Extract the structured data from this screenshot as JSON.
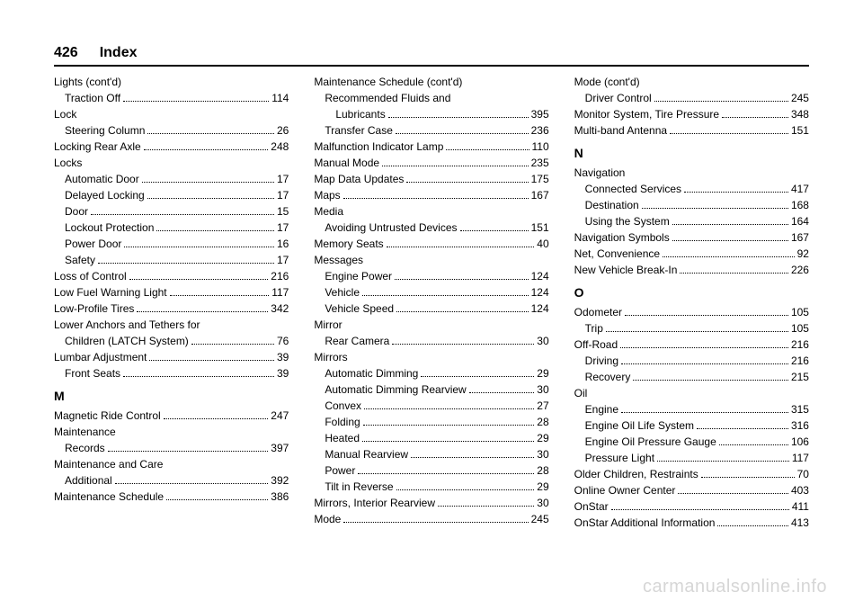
{
  "header": {
    "page_number": "426",
    "section": "Index"
  },
  "watermark": "carmanualsonline.info",
  "col1": [
    {
      "type": "group",
      "label": "Lights (cont'd)"
    },
    {
      "type": "sub",
      "label": "Traction Off",
      "page": "114"
    },
    {
      "type": "group",
      "label": "Lock"
    },
    {
      "type": "sub",
      "label": "Steering Column",
      "page": "26"
    },
    {
      "type": "entry",
      "label": "Locking Rear Axle",
      "page": "248"
    },
    {
      "type": "group",
      "label": "Locks"
    },
    {
      "type": "sub",
      "label": "Automatic Door",
      "page": "17"
    },
    {
      "type": "sub",
      "label": "Delayed Locking",
      "page": "17"
    },
    {
      "type": "sub",
      "label": "Door",
      "page": "15"
    },
    {
      "type": "sub",
      "label": "Lockout Protection",
      "page": "17"
    },
    {
      "type": "sub",
      "label": "Power Door",
      "page": "16"
    },
    {
      "type": "sub",
      "label": "Safety",
      "page": "17"
    },
    {
      "type": "entry",
      "label": "Loss of Control",
      "page": "216"
    },
    {
      "type": "entry",
      "label": "Low Fuel Warning Light",
      "page": "117"
    },
    {
      "type": "entry",
      "label": "Low-Profile Tires",
      "page": "342"
    },
    {
      "type": "group",
      "label": "Lower Anchors and Tethers for"
    },
    {
      "type": "sub",
      "label": "Children (LATCH System)",
      "page": "76"
    },
    {
      "type": "entry",
      "label": "Lumbar Adjustment",
      "page": "39"
    },
    {
      "type": "sub",
      "label": "Front Seats",
      "page": "39"
    },
    {
      "type": "letter",
      "label": "M"
    },
    {
      "type": "entry",
      "label": "Magnetic Ride Control",
      "page": "247"
    },
    {
      "type": "group",
      "label": "Maintenance"
    },
    {
      "type": "sub",
      "label": "Records",
      "page": "397"
    },
    {
      "type": "group",
      "label": "Maintenance and Care"
    },
    {
      "type": "sub",
      "label": "Additional",
      "page": "392"
    },
    {
      "type": "entry",
      "label": "Maintenance Schedule",
      "page": "386"
    }
  ],
  "col2": [
    {
      "type": "group",
      "label": "Maintenance Schedule (cont'd)"
    },
    {
      "type": "subgroup",
      "label": "Recommended Fluids and"
    },
    {
      "type": "sub2",
      "label": "Lubricants",
      "page": "395"
    },
    {
      "type": "sub",
      "label": "Transfer Case",
      "page": "236"
    },
    {
      "type": "entry",
      "label": "Malfunction Indicator Lamp",
      "page": "110"
    },
    {
      "type": "entry",
      "label": "Manual Mode",
      "page": "235"
    },
    {
      "type": "entry",
      "label": "Map Data Updates",
      "page": "175"
    },
    {
      "type": "entry",
      "label": "Maps",
      "page": "167"
    },
    {
      "type": "group",
      "label": "Media"
    },
    {
      "type": "sub",
      "label": "Avoiding Untrusted Devices",
      "page": "151"
    },
    {
      "type": "entry",
      "label": "Memory Seats",
      "page": "40"
    },
    {
      "type": "group",
      "label": "Messages"
    },
    {
      "type": "sub",
      "label": "Engine Power",
      "page": "124"
    },
    {
      "type": "sub",
      "label": "Vehicle",
      "page": "124"
    },
    {
      "type": "sub",
      "label": "Vehicle Speed",
      "page": "124"
    },
    {
      "type": "group",
      "label": "Mirror"
    },
    {
      "type": "sub",
      "label": "Rear Camera",
      "page": "30"
    },
    {
      "type": "group",
      "label": "Mirrors"
    },
    {
      "type": "sub",
      "label": "Automatic Dimming",
      "page": "29"
    },
    {
      "type": "sub",
      "label": "Automatic Dimming Rearview",
      "page": "30"
    },
    {
      "type": "sub",
      "label": "Convex",
      "page": "27"
    },
    {
      "type": "sub",
      "label": "Folding",
      "page": "28"
    },
    {
      "type": "sub",
      "label": "Heated",
      "page": "29"
    },
    {
      "type": "sub",
      "label": "Manual Rearview",
      "page": "30"
    },
    {
      "type": "sub",
      "label": "Power",
      "page": "28"
    },
    {
      "type": "sub",
      "label": "Tilt in Reverse",
      "page": "29"
    },
    {
      "type": "entry",
      "label": "Mirrors, Interior Rearview",
      "page": "30"
    },
    {
      "type": "entry",
      "label": "Mode",
      "page": "245"
    }
  ],
  "col3": [
    {
      "type": "group",
      "label": "Mode (cont'd)"
    },
    {
      "type": "sub",
      "label": "Driver Control",
      "page": "245"
    },
    {
      "type": "entry",
      "label": "Monitor System, Tire Pressure",
      "page": "348"
    },
    {
      "type": "entry",
      "label": "Multi-band Antenna",
      "page": "151"
    },
    {
      "type": "letter",
      "label": "N"
    },
    {
      "type": "group",
      "label": "Navigation"
    },
    {
      "type": "sub",
      "label": "Connected Services",
      "page": "417"
    },
    {
      "type": "sub",
      "label": "Destination",
      "page": "168"
    },
    {
      "type": "sub",
      "label": "Using the System",
      "page": "164"
    },
    {
      "type": "entry",
      "label": "Navigation Symbols",
      "page": "167"
    },
    {
      "type": "entry",
      "label": "Net, Convenience",
      "page": "92"
    },
    {
      "type": "entry",
      "label": "New Vehicle Break-In",
      "page": "226"
    },
    {
      "type": "letter",
      "label": "O"
    },
    {
      "type": "entry",
      "label": "Odometer",
      "page": "105"
    },
    {
      "type": "sub",
      "label": "Trip",
      "page": "105"
    },
    {
      "type": "entry",
      "label": "Off-Road",
      "page": "216"
    },
    {
      "type": "sub",
      "label": "Driving",
      "page": "216"
    },
    {
      "type": "sub",
      "label": "Recovery",
      "page": "215"
    },
    {
      "type": "group",
      "label": "Oil"
    },
    {
      "type": "sub",
      "label": "Engine",
      "page": "315"
    },
    {
      "type": "sub",
      "label": "Engine Oil Life System",
      "page": "316"
    },
    {
      "type": "sub",
      "label": "Engine Oil Pressure Gauge",
      "page": "106"
    },
    {
      "type": "sub",
      "label": "Pressure Light",
      "page": "117"
    },
    {
      "type": "entry",
      "label": "Older Children, Restraints",
      "page": "70"
    },
    {
      "type": "entry",
      "label": "Online Owner Center",
      "page": "403"
    },
    {
      "type": "entry",
      "label": "OnStar",
      "page": "411"
    },
    {
      "type": "entry",
      "label": "OnStar Additional Information",
      "page": "413"
    }
  ]
}
